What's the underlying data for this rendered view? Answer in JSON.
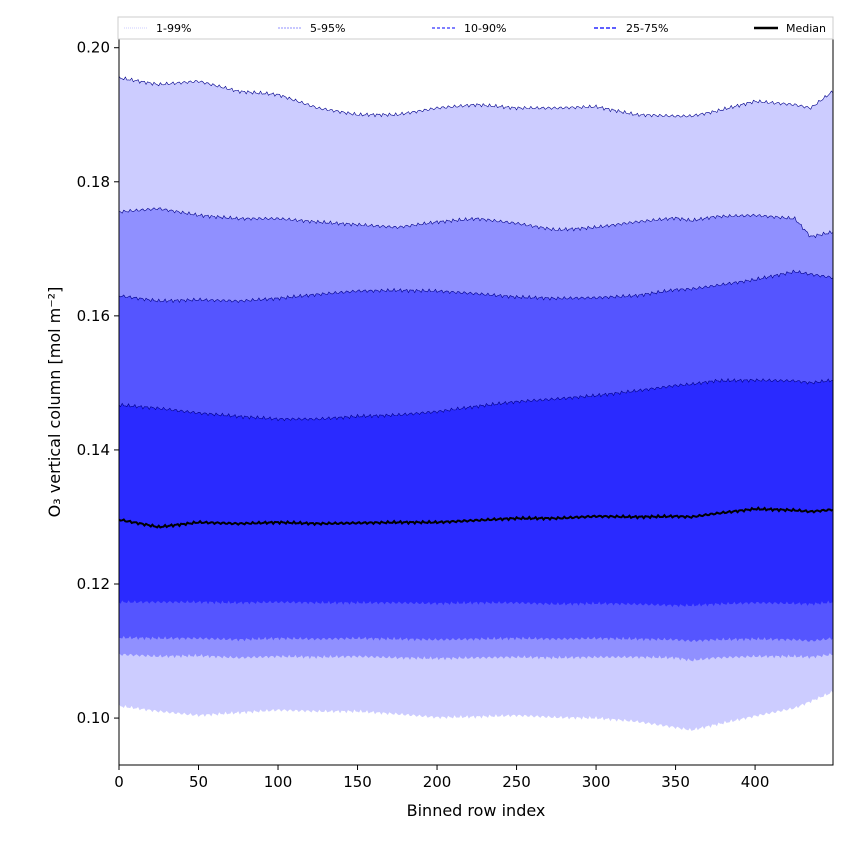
{
  "chart_data": {
    "type": "area",
    "title": "",
    "xlabel": "Binned row index",
    "ylabel": "O₃ vertical column [mol m⁻²]",
    "xlim": [
      0,
      449
    ],
    "ylim": [
      0.093,
      0.2013
    ],
    "xticks": [
      0,
      50,
      100,
      150,
      200,
      250,
      300,
      350,
      400
    ],
    "yticks": [
      0.1,
      0.12,
      0.14,
      0.16,
      0.18,
      0.2
    ],
    "ytick_labels": [
      "0.10",
      "0.12",
      "0.14",
      "0.16",
      "0.18",
      "0.20"
    ],
    "legend_position": "top, above plot",
    "x": [
      0,
      25,
      50,
      75,
      100,
      125,
      150,
      175,
      200,
      225,
      250,
      275,
      300,
      325,
      350,
      360,
      375,
      400,
      425,
      435,
      449
    ],
    "bands": [
      {
        "name": "1-99%",
        "color": "#ccccff",
        "lower": [
          0.1018,
          0.101,
          0.1004,
          0.1008,
          0.1012,
          0.101,
          0.101,
          0.1006,
          0.1001,
          0.1002,
          0.1004,
          0.1001,
          0.1,
          0.0995,
          0.0986,
          0.0982,
          0.099,
          0.1003,
          0.1015,
          0.1025,
          0.1039
        ],
        "upper": [
          0.1955,
          0.1945,
          0.195,
          0.1935,
          0.193,
          0.191,
          0.19,
          0.19,
          0.191,
          0.1915,
          0.191,
          0.191,
          0.1912,
          0.19,
          0.1898,
          0.1898,
          0.1905,
          0.192,
          0.1915,
          0.191,
          0.1935
        ]
      },
      {
        "name": "5-95%",
        "color": "#9090ff",
        "lower": [
          0.1095,
          0.1092,
          0.1093,
          0.109,
          0.1092,
          0.1091,
          0.1092,
          0.109,
          0.1089,
          0.109,
          0.1091,
          0.109,
          0.1091,
          0.1091,
          0.109,
          0.1086,
          0.109,
          0.1092,
          0.1092,
          0.1091,
          0.1095
        ],
        "upper": [
          0.1755,
          0.176,
          0.175,
          0.1745,
          0.1745,
          0.174,
          0.1736,
          0.1732,
          0.174,
          0.1745,
          0.1738,
          0.1728,
          0.1732,
          0.174,
          0.1746,
          0.1742,
          0.1748,
          0.175,
          0.1745,
          0.1718,
          0.1725
        ]
      },
      {
        "name": "10-90%",
        "color": "#5555ff",
        "lower": [
          0.112,
          0.1119,
          0.1119,
          0.1117,
          0.1119,
          0.1118,
          0.1119,
          0.1118,
          0.1117,
          0.1118,
          0.1119,
          0.1118,
          0.1119,
          0.1118,
          0.1117,
          0.1115,
          0.1117,
          0.1118,
          0.1117,
          0.1115,
          0.1119
        ],
        "upper": [
          0.163,
          0.1622,
          0.1624,
          0.1622,
          0.1626,
          0.1632,
          0.1637,
          0.1638,
          0.1637,
          0.1633,
          0.1628,
          0.1626,
          0.1627,
          0.163,
          0.1639,
          0.164,
          0.1645,
          0.1654,
          0.1666,
          0.1662,
          0.1657
        ]
      },
      {
        "name": "25-75%",
        "color": "#2a2aff",
        "lower": [
          0.1173,
          0.1173,
          0.1173,
          0.1172,
          0.1173,
          0.1172,
          0.1172,
          0.1172,
          0.1171,
          0.1172,
          0.1172,
          0.117,
          0.1171,
          0.117,
          0.1168,
          0.1168,
          0.117,
          0.1172,
          0.1171,
          0.117,
          0.1173
        ],
        "upper": [
          0.1467,
          0.1462,
          0.1455,
          0.145,
          0.1446,
          0.1446,
          0.145,
          0.1452,
          0.1457,
          0.1465,
          0.1472,
          0.1476,
          0.1481,
          0.1488,
          0.1496,
          0.1498,
          0.1503,
          0.1504,
          0.1503,
          0.15,
          0.1504
        ]
      }
    ],
    "median": {
      "name": "Median",
      "color": "#000000",
      "values": [
        0.1296,
        0.1285,
        0.1292,
        0.129,
        0.1292,
        0.129,
        0.1291,
        0.1292,
        0.1292,
        0.1295,
        0.1298,
        0.1298,
        0.1301,
        0.13,
        0.1301,
        0.13,
        0.1305,
        0.1312,
        0.131,
        0.1308,
        0.1311
      ]
    },
    "legend": [
      "1-99%",
      "5-95%",
      "10-90%",
      "25-75%",
      "Median"
    ]
  }
}
